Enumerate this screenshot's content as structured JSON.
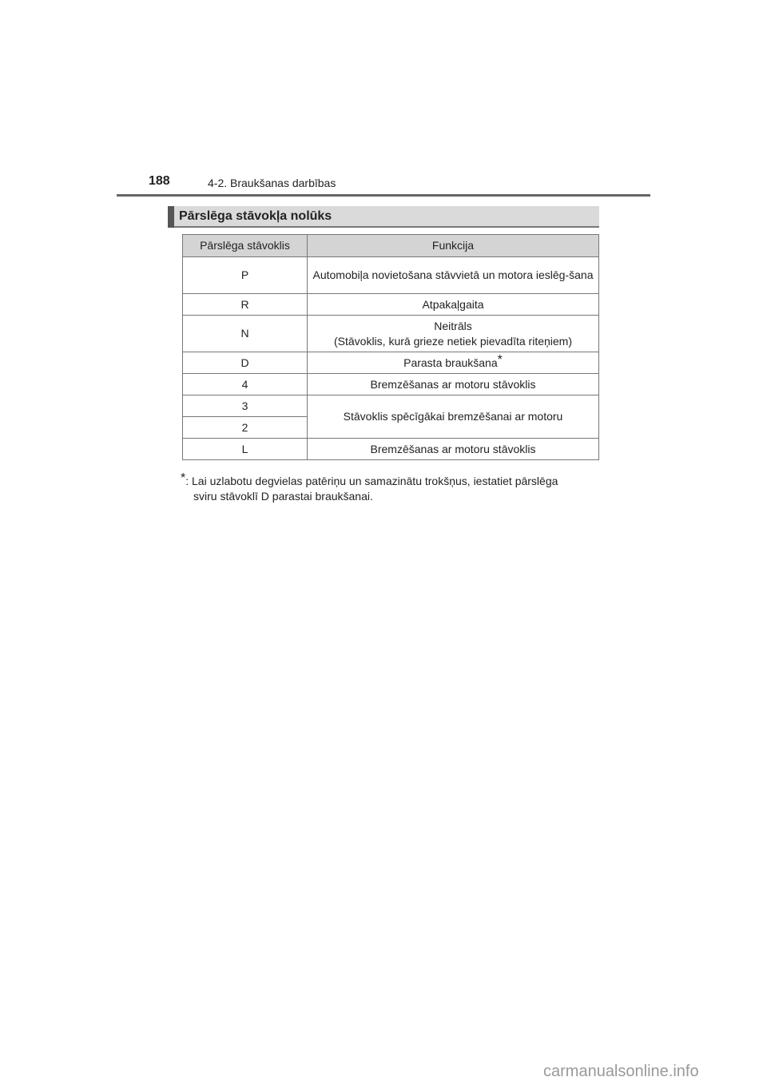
{
  "header": {
    "page_number": "188",
    "chapter": "4-2. Braukšanas darbības"
  },
  "section": {
    "title": "Pārslēga stāvokļa nolūks"
  },
  "table": {
    "headers": [
      "Pārslēga stāvoklis",
      "Funkcija"
    ],
    "rows": [
      {
        "pos": "P",
        "func": "Automobiļa novietošana stāvvietā un motora ieslēg-šana"
      },
      {
        "pos": "R",
        "func": "Atpakaļgaita"
      },
      {
        "pos": "N",
        "func": "Neitrāls",
        "func2": "(Stāvoklis, kurā grieze netiek pievadīta riteņiem)"
      },
      {
        "pos": "D",
        "func": "Parasta braukšana",
        "mark": "*"
      },
      {
        "pos": "4",
        "func": "Bremzēšanas ar motoru stāvoklis"
      },
      {
        "pos": "3",
        "func": "Stāvoklis spēcīgākai bremzēšanai ar motoru"
      },
      {
        "pos": "2"
      },
      {
        "pos": "L",
        "func": "Bremzēšanas ar motoru stāvoklis"
      }
    ]
  },
  "footnote": {
    "mark": "*",
    "text1": ": Lai uzlabotu degvielas patēriņu un samazinātu trokšņus, iestatiet pārslēga",
    "text2": "sviru stāvoklī D parastai braukšanai."
  },
  "watermark": "carmanualsonline.info"
}
